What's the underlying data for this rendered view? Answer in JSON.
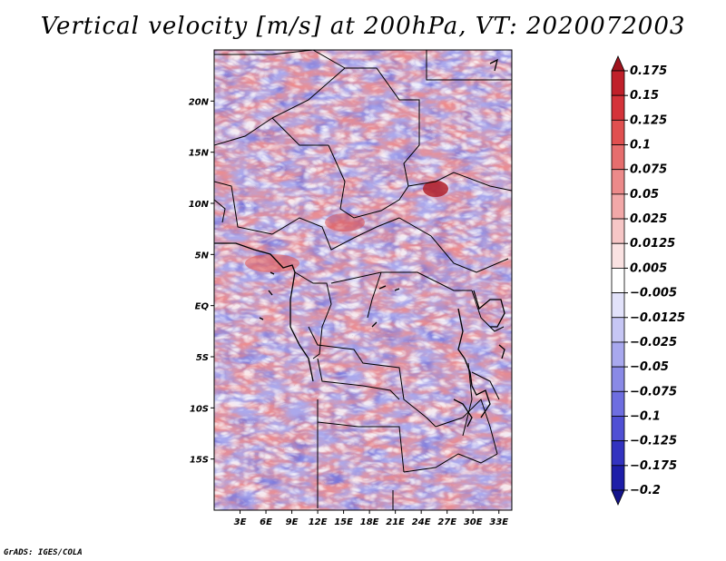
{
  "title": "Vertical velocity [m/s] at 200hPa, VT: 2020072003",
  "footer": "GrADS: IGES/COLA",
  "map": {
    "lat_labels": [
      "20N",
      "15N",
      "10N",
      "5N",
      "EQ",
      "5S",
      "10S",
      "15S"
    ],
    "lat_values": [
      20,
      15,
      10,
      5,
      0,
      -5,
      -10,
      -15
    ],
    "lon_labels": [
      "3E",
      "6E",
      "9E",
      "12E",
      "15E",
      "18E",
      "21E",
      "24E",
      "27E",
      "30E",
      "33E"
    ],
    "lon_values": [
      3,
      6,
      9,
      12,
      15,
      18,
      21,
      24,
      27,
      30,
      33
    ],
    "lon_range": [
      0,
      34.5
    ],
    "lat_range": [
      -20,
      25
    ]
  },
  "colorbar": {
    "labels": [
      "0.175",
      "0.15",
      "0.125",
      "0.1",
      "0.075",
      "0.05",
      "0.025",
      "0.0125",
      "0.005",
      "−0.005",
      "−0.0125",
      "−0.025",
      "−0.05",
      "−0.075",
      "−0.1",
      "−0.125",
      "−0.175",
      "−0.2"
    ],
    "colors": [
      "#a0141e",
      "#c0202a",
      "#d4333a",
      "#e05050",
      "#e66e6e",
      "#ec8a8a",
      "#f2a8a8",
      "#f6c6c6",
      "#fae2e2",
      "#ffffff",
      "#e2e2fa",
      "#c6c6f4",
      "#a8a8ee",
      "#8a8ae6",
      "#6e6ee0",
      "#5050d4",
      "#3333c0",
      "#1e1ea8",
      "#14148c"
    ]
  }
}
